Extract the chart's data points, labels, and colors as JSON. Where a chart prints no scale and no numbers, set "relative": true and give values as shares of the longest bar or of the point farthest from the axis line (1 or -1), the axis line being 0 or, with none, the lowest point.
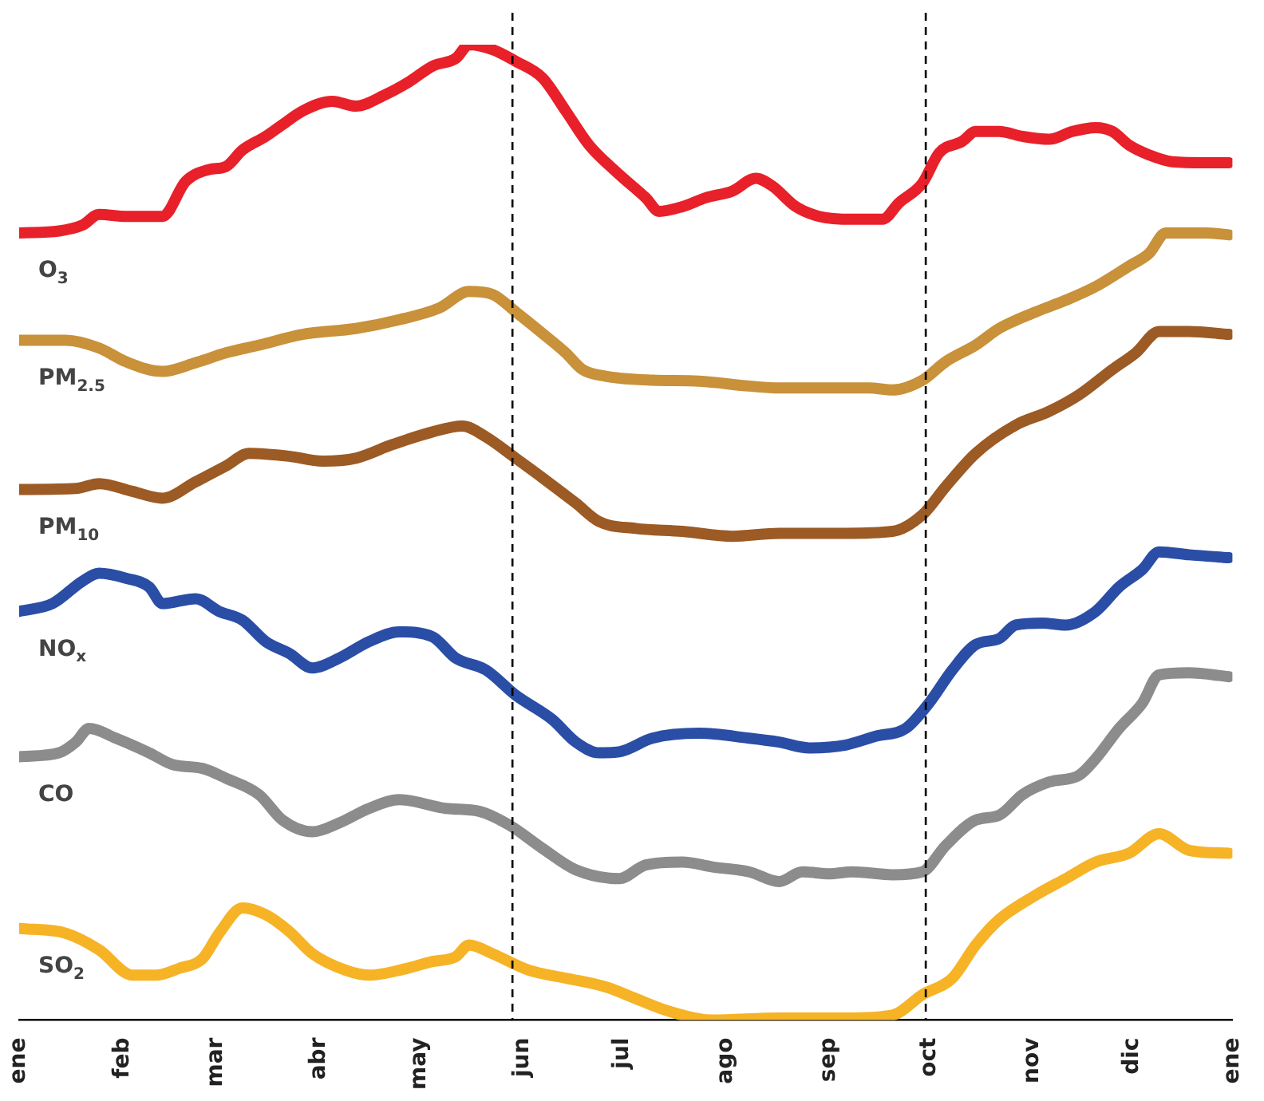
{
  "chart_data": {
    "type": "line",
    "relative": true,
    "xlim": [
      "--01-01",
      "--12-31"
    ],
    "xticks": [
      {
        "value": "--01-01",
        "label": "ene"
      },
      {
        "value": "--02-01",
        "label": "feb"
      },
      {
        "value": "--03-01",
        "label": "mar"
      },
      {
        "value": "--04-01",
        "label": "abr"
      },
      {
        "value": "--05-01",
        "label": "may"
      },
      {
        "value": "--06-01",
        "label": "jun"
      },
      {
        "value": "--07-01",
        "label": "jul"
      },
      {
        "value": "--08-01",
        "label": "ago"
      },
      {
        "value": "--09-01",
        "label": "sep"
      },
      {
        "value": "--10-01",
        "label": "oct"
      },
      {
        "value": "--11-01",
        "label": "nov"
      },
      {
        "value": "--12-01",
        "label": "dic"
      },
      {
        "value": "--12-31",
        "label": "ene"
      }
    ],
    "ref_lines": [
      {
        "axis": "x",
        "value": "--05-29",
        "line_style": "dashed",
        "color": "#000000"
      },
      {
        "axis": "x",
        "value": "--09-30",
        "line_style": "dashed",
        "color": "#000000"
      }
    ],
    "series": [
      {
        "name": "O$_{3}$",
        "color": "#e8202a",
        "x": [
          "--01-01",
          "--01-13",
          "--01-20",
          "--01-25",
          "--02-02",
          "--02-13",
          "--02-20",
          "--02-27",
          "--03-04",
          "--03-09",
          "--03-16",
          "--03-21",
          "--03-27",
          "--04-05",
          "--04-12",
          "--04-21",
          "--04-28",
          "--05-05",
          "--05-12",
          "--05-16",
          "--05-23",
          "--05-30",
          "--06-07",
          "--06-14",
          "--06-21",
          "--06-30",
          "--07-08",
          "--07-12",
          "--07-19",
          "--07-26",
          "--08-03",
          "--08-10",
          "--08-15",
          "--08-22",
          "--08-29",
          "--09-08",
          "--09-17",
          "--09-22",
          "--09-29",
          "--10-04",
          "--10-11",
          "--10-15",
          "--10-22",
          "--10-29",
          "--11-06",
          "--11-13",
          "--11-20",
          "--11-25",
          "--11-30",
          "--12-06",
          "--12-13",
          "--12-23",
          "--12-30"
        ],
        "values": [
          0.807,
          0.809,
          0.815,
          0.826,
          0.824,
          0.824,
          0.86,
          0.872,
          0.875,
          0.892,
          0.906,
          0.918,
          0.932,
          0.942,
          0.937,
          0.949,
          0.962,
          0.978,
          0.986,
          1,
          0.995,
          0.983,
          0.966,
          0.932,
          0.897,
          0.867,
          0.843,
          0.829,
          0.834,
          0.843,
          0.85,
          0.863,
          0.855,
          0.834,
          0.824,
          0.821,
          0.821,
          0.838,
          0.858,
          0.889,
          0.901,
          0.911,
          0.911,
          0.906,
          0.903,
          0.911,
          0.915,
          0.911,
          0.897,
          0.887,
          0.88,
          0.879,
          0.879
        ]
      },
      {
        "name": "PM$_{2.5}$",
        "color": "#c8913a",
        "x": [
          "--01-01",
          "--01-15",
          "--01-25",
          "--02-02",
          "--02-13",
          "--02-23",
          "--03-04",
          "--03-14",
          "--03-27",
          "--04-12",
          "--04-25",
          "--05-07",
          "--05-16",
          "--05-23",
          "--05-30",
          "--06-07",
          "--06-14",
          "--06-19",
          "--06-26",
          "--07-10",
          "--07-24",
          "--08-08",
          "--08-17",
          "--09-01",
          "--09-13",
          "--09-20",
          "--09-29",
          "--10-06",
          "--10-15",
          "--10-22",
          "--11-02",
          "--11-11",
          "--11-20",
          "--11-30",
          "--12-06",
          "--12-11",
          "--12-23",
          "--12-30"
        ],
        "values": [
          0.697,
          0.697,
          0.689,
          0.675,
          0.665,
          0.674,
          0.684,
          0.692,
          0.703,
          0.709,
          0.718,
          0.73,
          0.747,
          0.744,
          0.726,
          0.704,
          0.684,
          0.667,
          0.66,
          0.656,
          0.655,
          0.65,
          0.648,
          0.648,
          0.648,
          0.646,
          0.656,
          0.675,
          0.692,
          0.709,
          0.726,
          0.738,
          0.752,
          0.773,
          0.786,
          0.807,
          0.807,
          0.805
        ]
      },
      {
        "name": "PM$_{10}$",
        "color": "#9c5a24",
        "x": [
          "--01-01",
          "--01-18",
          "--01-25",
          "--02-04",
          "--02-13",
          "--02-23",
          "--03-04",
          "--03-11",
          "--03-23",
          "--04-02",
          "--04-12",
          "--04-23",
          "--05-05",
          "--05-14",
          "--05-21",
          "--05-30",
          "--06-07",
          "--06-17",
          "--06-24",
          "--07-05",
          "--07-19",
          "--08-03",
          "--08-17",
          "--09-06",
          "--09-20",
          "--09-29",
          "--10-06",
          "--10-15",
          "--10-27",
          "--11-06",
          "--11-15",
          "--11-25",
          "--12-02",
          "--12-09",
          "--12-18",
          "--12-30"
        ],
        "values": [
          0.544,
          0.545,
          0.55,
          0.542,
          0.535,
          0.552,
          0.568,
          0.581,
          0.578,
          0.573,
          0.576,
          0.59,
          0.603,
          0.609,
          0.598,
          0.576,
          0.556,
          0.53,
          0.511,
          0.504,
          0.501,
          0.496,
          0.499,
          0.499,
          0.501,
          0.518,
          0.547,
          0.581,
          0.61,
          0.624,
          0.641,
          0.667,
          0.684,
          0.706,
          0.706,
          0.703
        ]
      },
      {
        "name": "NO$_{x}$",
        "color": "#2a4ea6",
        "x": [
          "--01-01",
          "--01-11",
          "--01-20",
          "--01-25",
          "--02-02",
          "--02-09",
          "--02-13",
          "--02-23",
          "--03-02",
          "--03-09",
          "--03-16",
          "--03-23",
          "--03-30",
          "--04-07",
          "--04-16",
          "--04-25",
          "--05-05",
          "--05-12",
          "--05-21",
          "--05-30",
          "--06-10",
          "--06-17",
          "--06-24",
          "--06-30",
          "--07-10",
          "--07-24",
          "--08-08",
          "--08-17",
          "--08-26",
          "--09-06",
          "--09-15",
          "--09-24",
          "--10-01",
          "--10-08",
          "--10-15",
          "--10-22",
          "--10-27",
          "--11-04",
          "--11-11",
          "--11-20",
          "--11-27",
          "--12-04",
          "--12-09",
          "--12-18",
          "--12-30"
        ],
        "values": [
          0.419,
          0.427,
          0.45,
          0.458,
          0.453,
          0.444,
          0.427,
          0.432,
          0.419,
          0.41,
          0.388,
          0.376,
          0.361,
          0.371,
          0.388,
          0.398,
          0.393,
          0.371,
          0.359,
          0.333,
          0.308,
          0.285,
          0.274,
          0.275,
          0.289,
          0.294,
          0.289,
          0.285,
          0.279,
          0.282,
          0.291,
          0.299,
          0.325,
          0.359,
          0.385,
          0.391,
          0.405,
          0.407,
          0.405,
          0.419,
          0.444,
          0.462,
          0.48,
          0.477,
          0.474
        ]
      },
      {
        "name": "CO",
        "color": "#8c8c8c",
        "x": [
          "--01-01",
          "--01-13",
          "--01-18",
          "--01-22",
          "--01-30",
          "--02-09",
          "--02-16",
          "--02-25",
          "--03-04",
          "--03-14",
          "--03-21",
          "--03-30",
          "--04-07",
          "--04-16",
          "--04-25",
          "--05-09",
          "--05-19",
          "--05-28",
          "--06-07",
          "--06-17",
          "--06-30",
          "--07-08",
          "--07-19",
          "--07-28",
          "--08-08",
          "--08-17",
          "--08-24",
          "--09-01",
          "--09-08",
          "--09-20",
          "--09-29",
          "--10-06",
          "--10-15",
          "--10-22",
          "--10-29",
          "--11-06",
          "--11-15",
          "--11-20",
          "--11-27",
          "--12-04",
          "--12-09",
          "--12-18",
          "--12-30"
        ],
        "values": [
          0.27,
          0.274,
          0.285,
          0.299,
          0.289,
          0.274,
          0.262,
          0.258,
          0.248,
          0.231,
          0.205,
          0.193,
          0.202,
          0.217,
          0.226,
          0.217,
          0.214,
          0.2,
          0.176,
          0.154,
          0.145,
          0.159,
          0.162,
          0.157,
          0.152,
          0.142,
          0.152,
          0.15,
          0.152,
          0.149,
          0.152,
          0.179,
          0.205,
          0.21,
          0.231,
          0.244,
          0.251,
          0.268,
          0.299,
          0.325,
          0.354,
          0.356,
          0.352
        ]
      },
      {
        "name": "SO$_{2}$",
        "color": "#f6b326",
        "x": [
          "--01-01",
          "--01-15",
          "--01-25",
          "--02-04",
          "--02-11",
          "--02-18",
          "--02-25",
          "--03-02",
          "--03-09",
          "--03-16",
          "--03-23",
          "--03-30",
          "--04-09",
          "--04-16",
          "--04-25",
          "--05-05",
          "--05-12",
          "--05-16",
          "--05-23",
          "--06-03",
          "--06-14",
          "--06-26",
          "--07-05",
          "--07-15",
          "--07-28",
          "--08-17",
          "--09-06",
          "--09-20",
          "--09-29",
          "--10-08",
          "--10-15",
          "--10-22",
          "--11-02",
          "--11-11",
          "--11-20",
          "--11-30",
          "--12-09",
          "--12-18",
          "--12-30"
        ],
        "values": [
          0.094,
          0.089,
          0.072,
          0.046,
          0.046,
          0.053,
          0.063,
          0.089,
          0.115,
          0.108,
          0.091,
          0.068,
          0.051,
          0.046,
          0.051,
          0.06,
          0.065,
          0.077,
          0.068,
          0.051,
          0.043,
          0.034,
          0.022,
          0.009,
          0,
          0.002,
          0.002,
          0.005,
          0.026,
          0.043,
          0.077,
          0.103,
          0.128,
          0.145,
          0.162,
          0.171,
          0.191,
          0.174,
          0.171
        ]
      }
    ]
  }
}
